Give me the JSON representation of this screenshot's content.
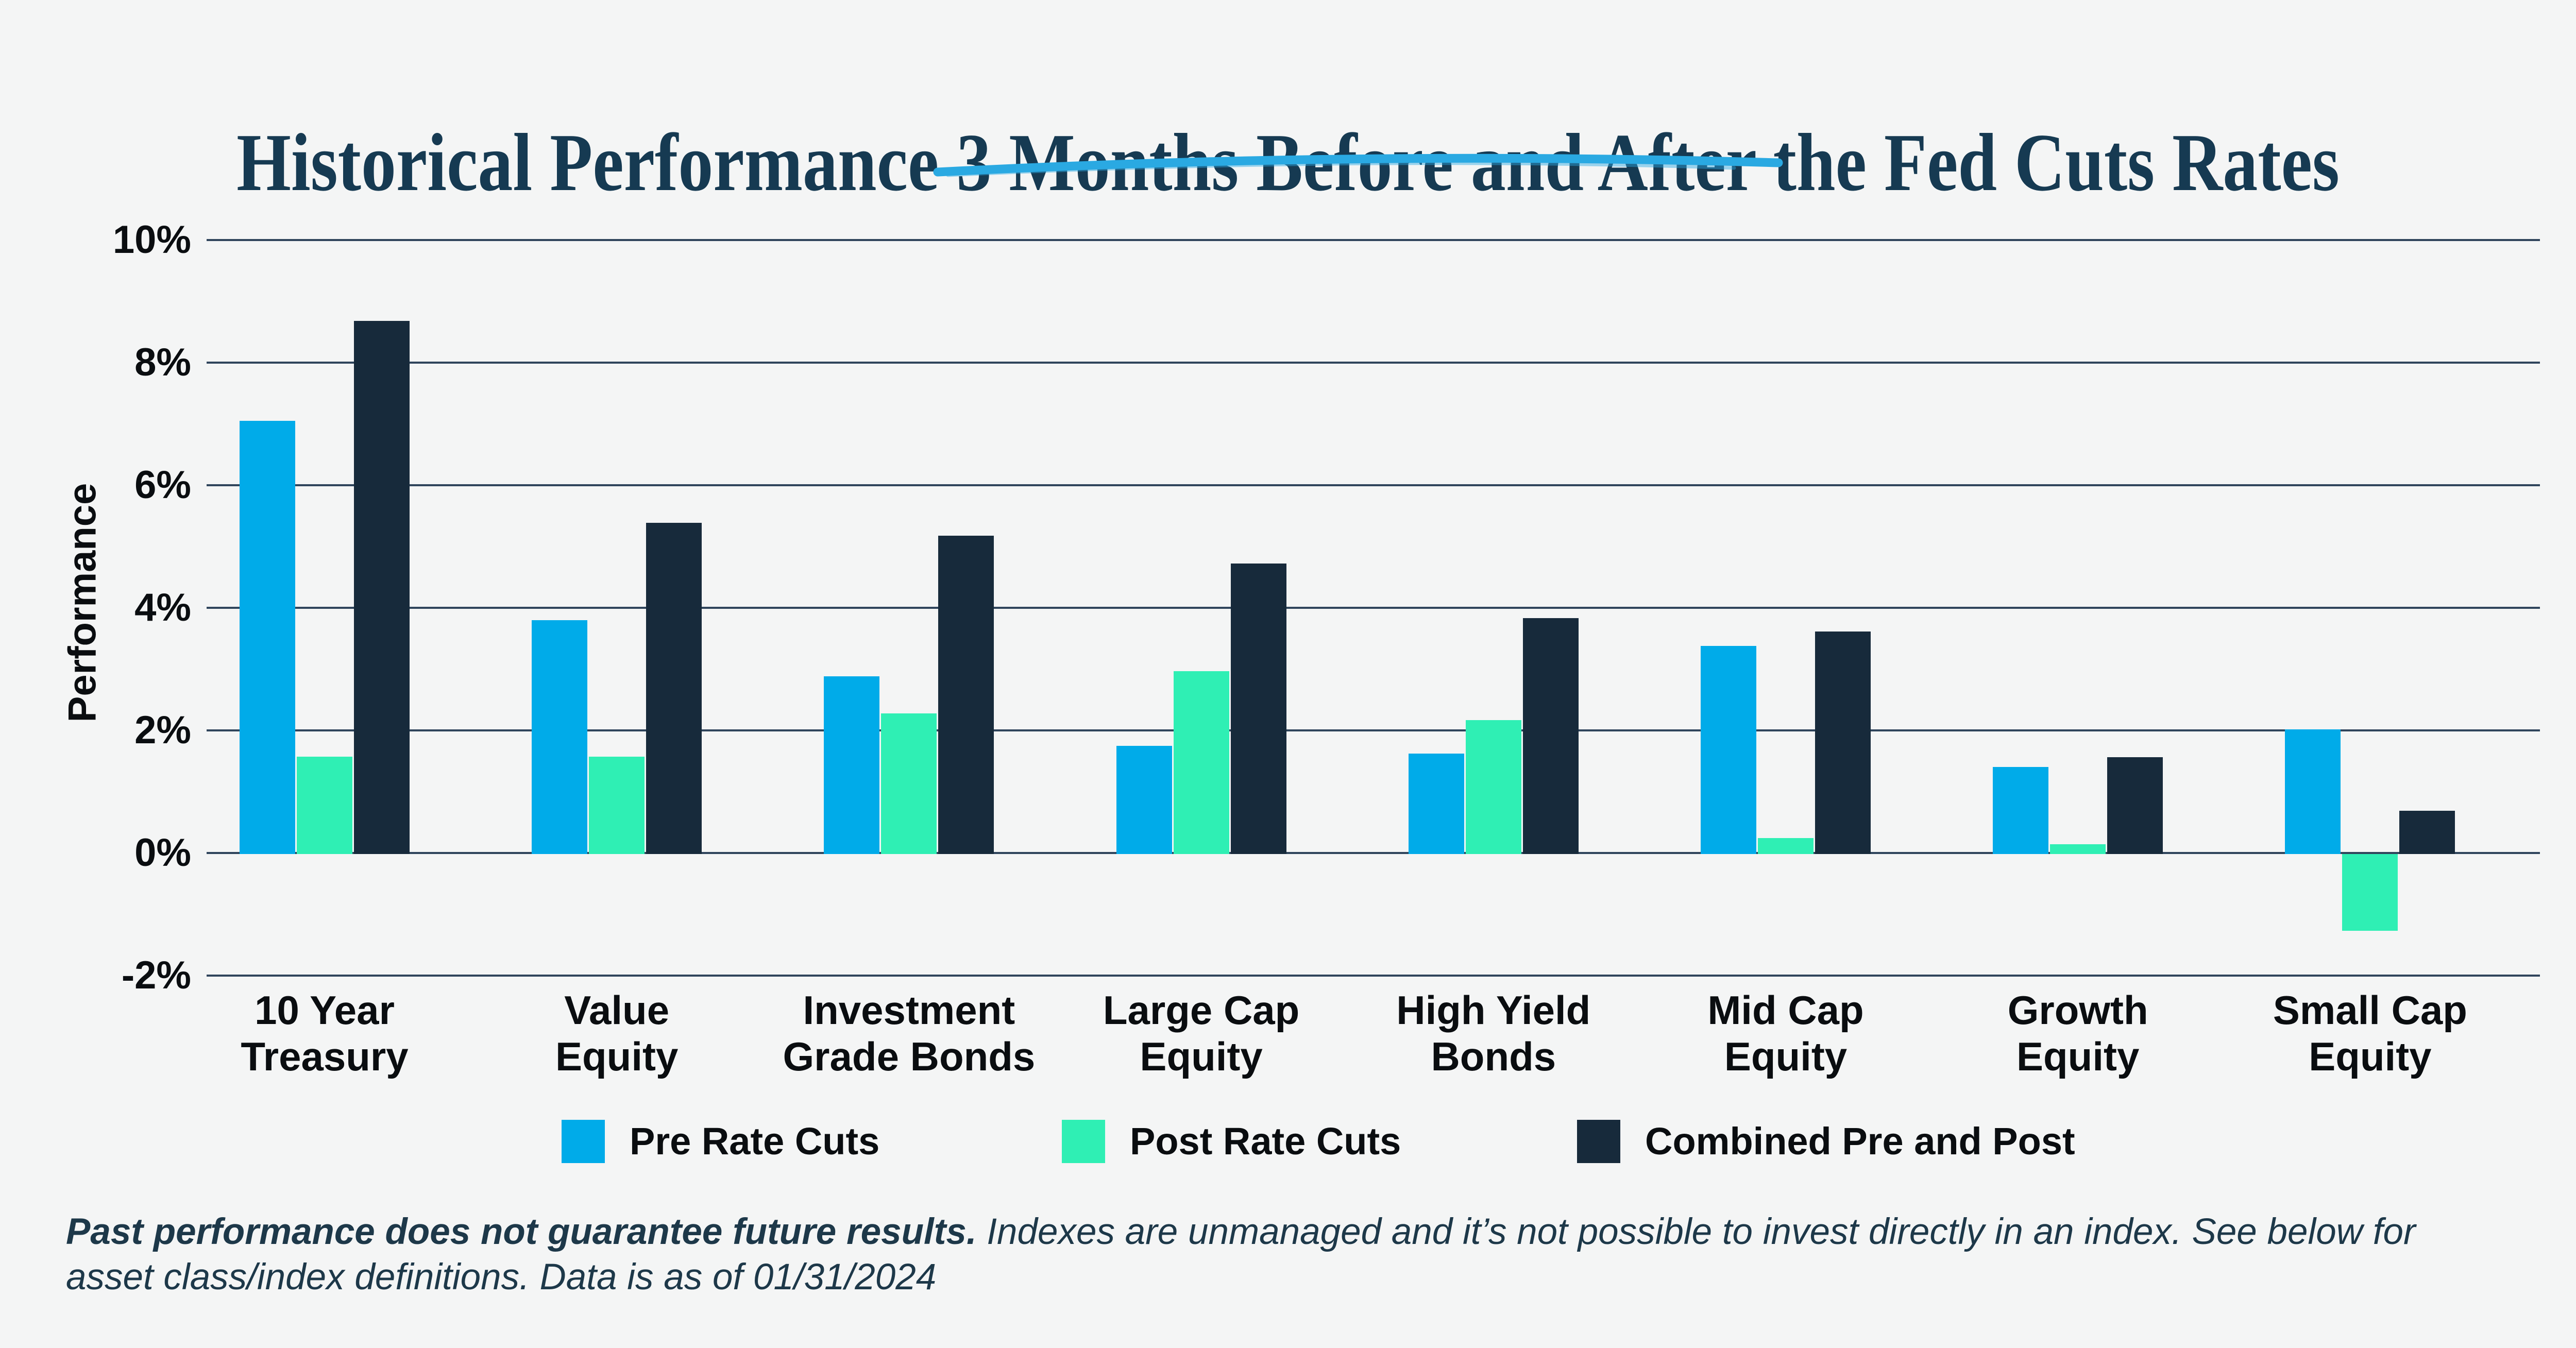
{
  "title": {
    "text": "Historical Performance 3 Months Before and After the Fed Cuts Rates"
  },
  "colors": {
    "background": "#f4f5f5",
    "title_text": "#163a52",
    "axis_text": "#0a0d10",
    "gridline": "#30455c",
    "underline_accent": "#2aa9e2",
    "footer_text": "#1d3849",
    "pre_rate_cuts": "#00abe9",
    "post_rate_cuts": "#2fefb4",
    "combined": "#172a3b"
  },
  "footer": {
    "bold_text": "Past performance does not guarantee future results.",
    "line1_rest": " Indexes are unmanaged and it’s not possible to invest directly in an index. See below for",
    "line2": "asset class/index definitions. Data is as of 01/31/2024"
  },
  "chart_data": {
    "type": "bar",
    "title": "Historical Performance 3 Months Before and After the Fed Cuts Rates",
    "xlabel": "",
    "ylabel": "Performance",
    "unit": "%",
    "ylim": [
      -2,
      10
    ],
    "ytick_step": 2,
    "yticks": [
      "10%",
      "8%",
      "6%",
      "4%",
      "2%",
      "0%",
      "-2%"
    ],
    "grid": true,
    "legend_position": "bottom",
    "categories": [
      "10 Year Treasury",
      "Value Equity",
      "Investment Grade Bonds",
      "Large Cap Equity",
      "High Yield Bonds",
      "Mid Cap Equity",
      "Growth Equity",
      "Small Cap Equity"
    ],
    "category_label_lines": [
      [
        "10 Year",
        "Treasury"
      ],
      [
        "Value",
        "Equity"
      ],
      [
        "Investment",
        "Grade Bonds"
      ],
      [
        "Large Cap",
        "Equity"
      ],
      [
        "High Yield",
        "Bonds"
      ],
      [
        "Mid Cap",
        "Equity"
      ],
      [
        "Growth",
        "Equity"
      ],
      [
        "Small Cap",
        "Equity"
      ]
    ],
    "series": [
      {
        "name": "Pre Rate Cuts",
        "color": "#00abe9",
        "values": [
          7.05,
          3.8,
          2.88,
          1.75,
          1.62,
          3.38,
          1.4,
          2.02
        ]
      },
      {
        "name": "Post Rate Cuts",
        "color": "#2fefb4",
        "values": [
          1.57,
          1.57,
          2.28,
          2.97,
          2.17,
          0.24,
          0.14,
          -1.25
        ]
      },
      {
        "name": "Combined Pre and Post",
        "color": "#172a3b",
        "values": [
          8.68,
          5.39,
          5.18,
          4.72,
          3.83,
          3.61,
          1.56,
          0.69
        ]
      }
    ]
  }
}
